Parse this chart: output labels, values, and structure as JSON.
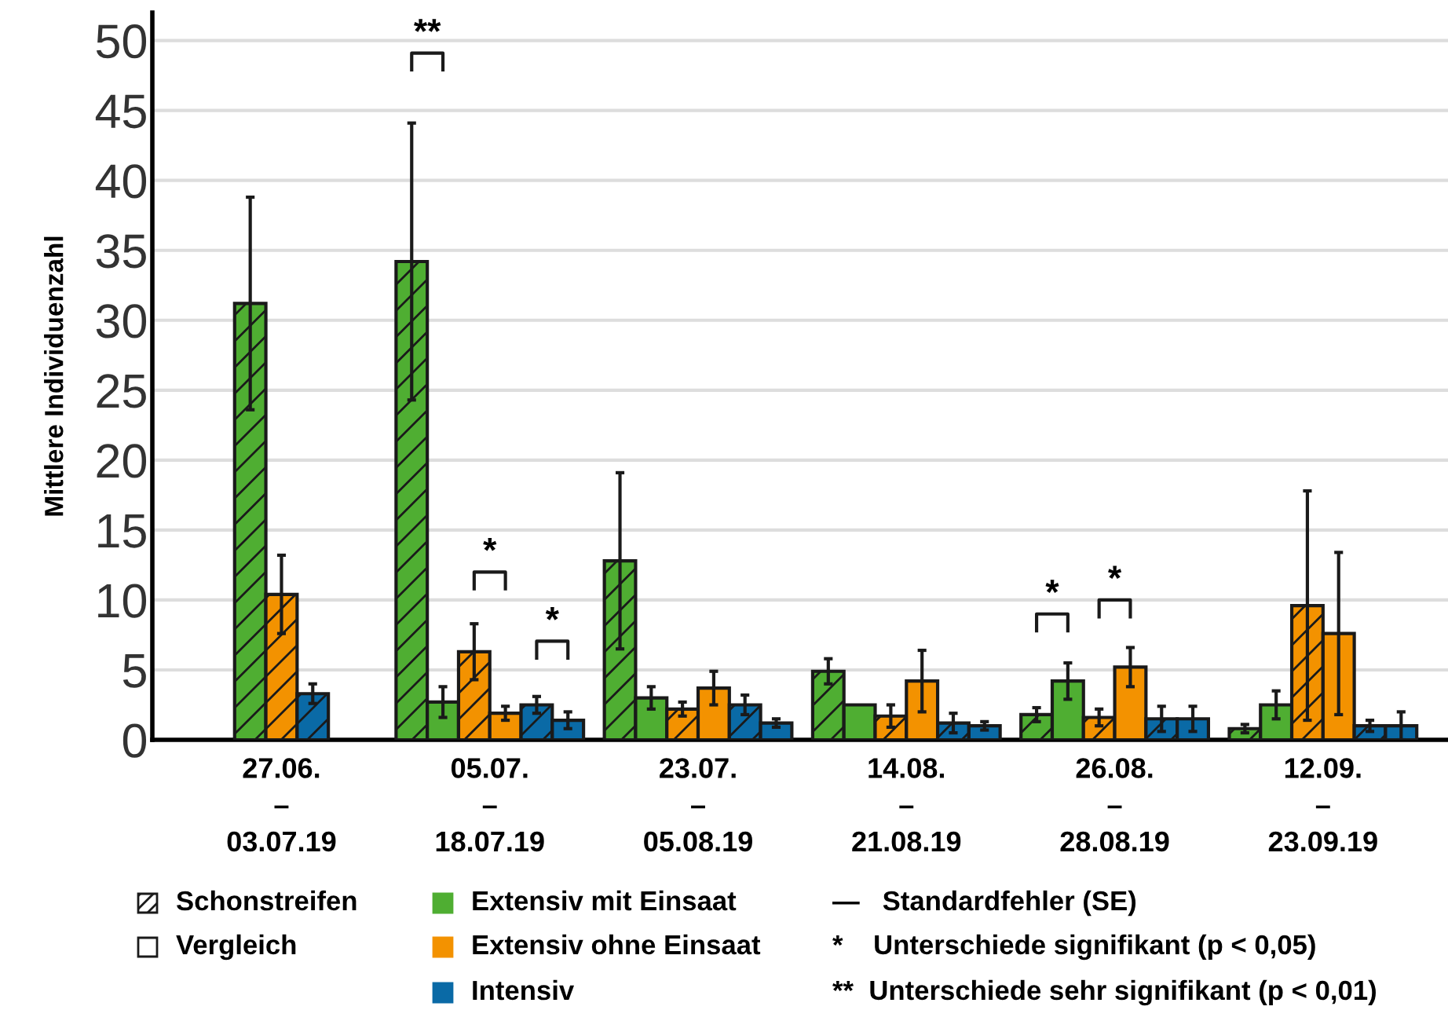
{
  "chart_data": {
    "type": "bar",
    "ylabel": "Mittlere Individuenzahl",
    "categories": [
      "27.06.\n–\n03.07.19",
      "05.07.\n–\n18.07.19",
      "23.07.\n–\n05.08.19",
      "14.08.\n–\n21.08.19",
      "26.08.\n–\n28.08.19",
      "12.09.\n–\n23.09.19"
    ],
    "series": [
      {
        "color": "#4fae32",
        "values": [
          31.2,
          34.2,
          12.8,
          4.9,
          1.8,
          0.8
        ],
        "errors": [
          7.6,
          9.9,
          6.3,
          0.9,
          0.5,
          0.3
        ]
      },
      {
        "color": "#4fae32",
        "values": [
          null,
          2.7,
          3.0,
          2.5,
          4.2,
          2.5
        ],
        "errors": [
          null,
          1.1,
          0.8,
          null,
          1.3,
          1.0
        ]
      },
      {
        "color": "#f39200",
        "values": [
          10.4,
          6.3,
          2.2,
          1.7,
          1.6,
          9.6
        ],
        "errors": [
          2.8,
          2.0,
          0.5,
          0.8,
          0.6,
          8.2
        ]
      },
      {
        "color": "#f39200",
        "values": [
          null,
          1.9,
          3.7,
          4.2,
          5.2,
          7.6
        ],
        "errors": [
          null,
          0.5,
          1.2,
          2.2,
          1.4,
          5.8
        ]
      },
      {
        "color": "#0a6aa6",
        "values": [
          3.3,
          2.5,
          2.5,
          1.2,
          1.5,
          1.0
        ],
        "errors": [
          0.7,
          0.6,
          0.7,
          0.7,
          0.9,
          0.4
        ]
      },
      {
        "color": "#0a6aa6",
        "values": [
          null,
          1.4,
          1.2,
          1.0,
          1.5,
          1.0
        ],
        "errors": [
          null,
          0.6,
          0.3,
          0.3,
          0.9,
          1.0
        ]
      }
    ],
    "ylim": [
      0,
      52
    ],
    "yticks": [
      0,
      5,
      10,
      15,
      20,
      25,
      30,
      35,
      40,
      45,
      50
    ],
    "grid": "y",
    "annotations": [
      "**",
      "*",
      "*",
      "*",
      "*",
      "Schonstreifen",
      "Vergleich",
      "Extensiv mit Einsaat",
      "Extensiv ohne Einsaat",
      "Intensiv",
      "—   Standardfehler (SE)",
      "*    Unterschiede signifikant (p < 0,05)",
      "**  Unterschiede sehr signifikant (p < 0,01)"
    ]
  }
}
